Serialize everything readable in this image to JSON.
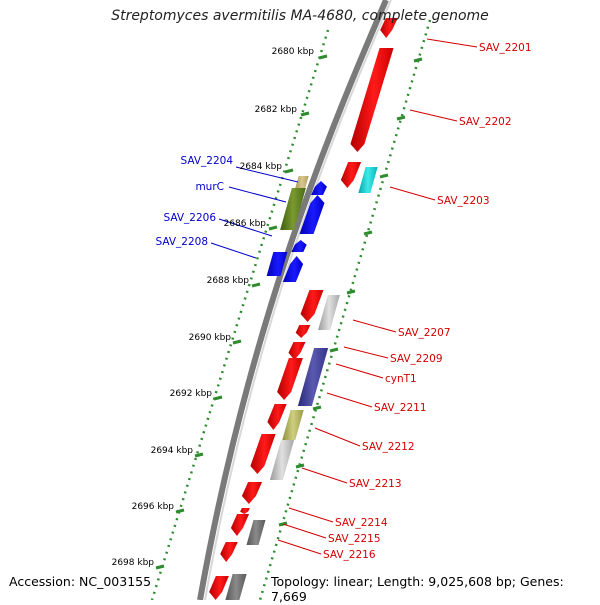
{
  "title": "Streptomyces avermitilis MA-4680, complete genome",
  "footer": {
    "accession": "Accession: NC_003155",
    "topology": "Topology: linear; Length: 9,025,608 bp; Genes: 7,669"
  },
  "scale": {
    "ticks": [
      "2680 kbp",
      "2682 kbp",
      "2684 kbp",
      "2686 kbp",
      "2688 kbp",
      "2690 kbp",
      "2692 kbp",
      "2694 kbp",
      "2696 kbp",
      "2698 kbp"
    ]
  },
  "labels_left": [
    "SAV_2204",
    "murC",
    "SAV_2206",
    "SAV_2208"
  ],
  "labels_right": [
    "SAV_2201",
    "SAV_2202",
    "SAV_2203",
    "SAV_2207",
    "SAV_2209",
    "cynT1",
    "SAV_2211",
    "SAV_2212",
    "SAV_2213",
    "SAV_2214",
    "SAV_2215",
    "SAV_2216"
  ],
  "colors": {
    "forward_gene": "#ff0000",
    "reverse_gene": "#0000ff",
    "forward_label": "#d40000",
    "reverse_label": "#0000cc",
    "scale_tick": "#2e8b2e",
    "backbone": "#888888"
  }
}
